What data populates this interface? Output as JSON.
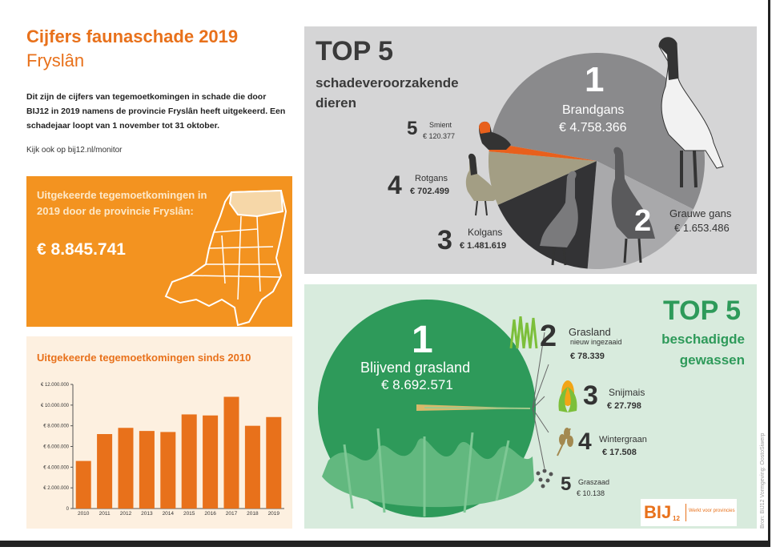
{
  "title": {
    "line1": "Cijfers faunaschade 2019",
    "line2": "Fryslân"
  },
  "intro": "Dit zijn de cijfers van tegemoetkomingen in schade die door BIJ12 in 2019 namens de provincie Fryslân heeft uitgekeerd. Een schadejaar loopt van 1 november tot 31 oktober.",
  "link": "Kijk ook op bij12.nl/monitor",
  "payout": {
    "label": "Uitgekeerde tegemoetkomingen in 2019 door de provincie Fryslân:",
    "value": "€ 8.845.741"
  },
  "animals": {
    "top": "TOP 5",
    "subtitle1": "schadeveroorzakende",
    "subtitle2": "dieren",
    "items": [
      {
        "rank": "1",
        "name": "Brandgans",
        "value": "€ 4.758.366"
      },
      {
        "rank": "2",
        "name": "Grauwe gans",
        "value": "€ 1.653.486"
      },
      {
        "rank": "3",
        "name": "Kolgans",
        "value": "€ 1.481.619"
      },
      {
        "rank": "4",
        "name": "Rotgans",
        "value": "€ 702.499"
      },
      {
        "rank": "5",
        "name": "Smient",
        "value": "€ 120.377"
      }
    ]
  },
  "crops": {
    "top": "TOP 5",
    "subtitle1": "beschadigde",
    "subtitle2": "gewassen",
    "items": [
      {
        "rank": "1",
        "name": "Blijvend grasland",
        "value": "€ 8.692.571"
      },
      {
        "rank": "2",
        "name": "Grasland",
        "note": "nieuw ingezaaid",
        "value": "€ 78.339"
      },
      {
        "rank": "3",
        "name": "Snijmais",
        "value": "€ 27.798"
      },
      {
        "rank": "4",
        "name": "Wintergraan",
        "value": "€ 17.508"
      },
      {
        "rank": "5",
        "name": "Graszaad",
        "value": "€ 10.138"
      }
    ]
  },
  "footer": {
    "logo": "BIJ",
    "logo_sub": "12",
    "tagline": "Werkt voor provincies",
    "credit": "Bron: BIJ12   Vormgeving: OostoSiwerp"
  },
  "colors": {
    "orange": "#e8711b",
    "orange_light": "#f39320",
    "green": "#2e9a5a",
    "gray_panel": "#d5d5d6",
    "green_panel": "#d8ebdd"
  },
  "chart_data": {
    "type": "bar",
    "title": "Uitgekeerde tegemoetkomingen sinds 2010",
    "categories": [
      "2010",
      "2011",
      "2012",
      "2013",
      "2014",
      "2015",
      "2016",
      "2017",
      "2018",
      "2019"
    ],
    "values": [
      4600000,
      7200000,
      7800000,
      7500000,
      7400000,
      9100000,
      9000000,
      10800000,
      8000000,
      8845741
    ],
    "ylim": [
      0,
      12000000
    ],
    "yticks": [
      "0",
      "€ 2.000.000",
      "€ 4.000.000",
      "€ 6.000.000",
      "€ 8.000.000",
      "€ 10.000.000",
      "€ 12.000.000"
    ],
    "xlabel": "",
    "ylabel": "",
    "color": "#e8711b"
  },
  "pie_animals": {
    "type": "pie",
    "values": [
      4758366,
      1653486,
      1481619,
      702499,
      120377
    ],
    "colors": [
      "#8a8a8c",
      "#a9a9ab",
      "#333335",
      "#a39e84",
      "#e8601c"
    ]
  }
}
